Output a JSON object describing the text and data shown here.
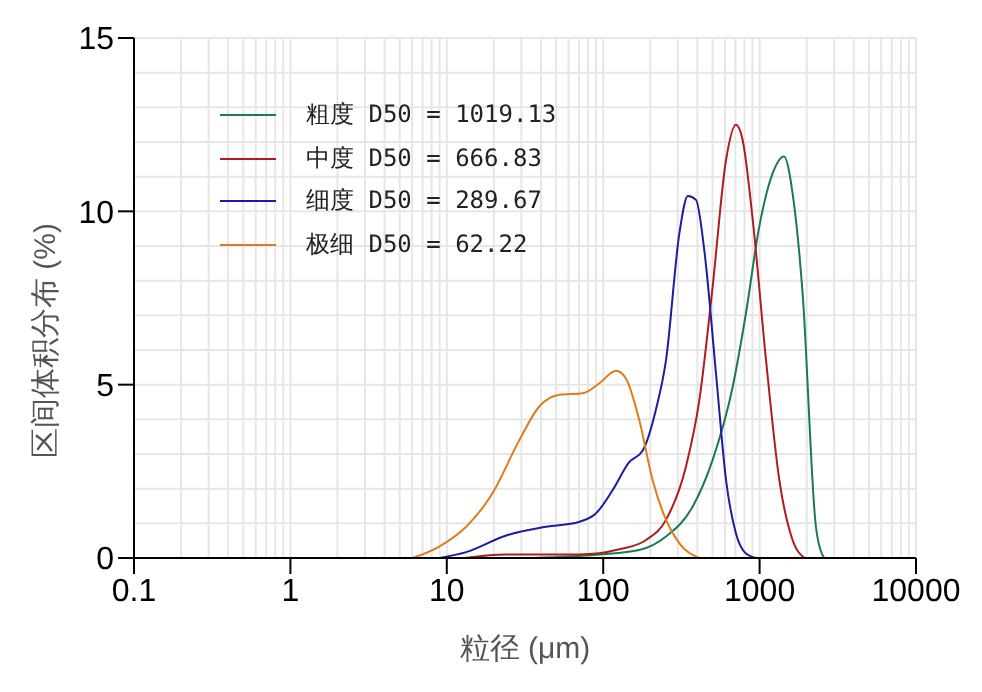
{
  "chart_data": {
    "type": "line",
    "xlabel": "粒径 (μm)",
    "ylabel": "区间体积分布 (%)",
    "log": "x",
    "xlim": [
      0.1,
      10000
    ],
    "xticks": [
      0.1,
      1,
      10,
      100,
      1000,
      10000
    ],
    "ylim": [
      0,
      15
    ],
    "yticks": [
      0,
      5,
      10,
      15
    ],
    "grid": true,
    "legend": "top left",
    "marker": "none",
    "line_style": "solid",
    "series": [
      {
        "name": "粗度 D50 = 1019.13",
        "color": "#1a7a50",
        "x": [
          36,
          94,
          170,
          252,
          373,
          501,
          673,
          818,
          995,
          1213,
          1432,
          1625,
          1884,
          2292,
          2580
        ],
        "values": [
          0,
          0.1,
          0.23,
          0.62,
          1.48,
          2.83,
          4.94,
          7.06,
          9.56,
          11.1,
          11.58,
          10.52,
          7.63,
          0.9,
          0
        ]
      },
      {
        "name": "中度 D50 = 666.83",
        "color": "#b01c1c",
        "x": [
          13,
          24,
          70,
          127,
          188,
          252,
          338,
          412,
          501,
          610,
          706,
          779,
          904,
          1099,
          1337,
          1625,
          1940
        ],
        "values": [
          0,
          0.1,
          0.1,
          0.25,
          0.52,
          1.1,
          2.63,
          4.56,
          7.83,
          11.48,
          12.5,
          12.06,
          9.75,
          5.71,
          2.25,
          0.52,
          0
        ]
      },
      {
        "name": "细度 D50 = 289.67",
        "color": "#1c1ca0",
        "x": [
          9,
          13.3,
          24,
          43,
          70,
          90,
          115,
          147,
          179,
          217,
          252,
          307,
          348,
          392,
          445,
          526,
          610,
          706,
          818,
          949
        ],
        "values": [
          0,
          0.17,
          0.65,
          0.9,
          1.04,
          1.29,
          1.96,
          2.77,
          3.1,
          4.27,
          5.7,
          9.37,
          10.44,
          10.33,
          8.8,
          5.33,
          2.25,
          0.71,
          0.13,
          0
        ]
      },
      {
        "name": "极细 D50 = 62.22",
        "color": "#e07b1a",
        "x": [
          6.05,
          8.95,
          13.3,
          19.6,
          29.1,
          39,
          52.5,
          74,
          94.5,
          121,
          140,
          170,
          207,
          252,
          307,
          412
        ],
        "values": [
          0,
          0.33,
          0.9,
          1.87,
          3.4,
          4.37,
          4.71,
          4.75,
          5.04,
          5.4,
          5.17,
          3.98,
          2.25,
          1.1,
          0.42,
          0
        ]
      }
    ]
  }
}
